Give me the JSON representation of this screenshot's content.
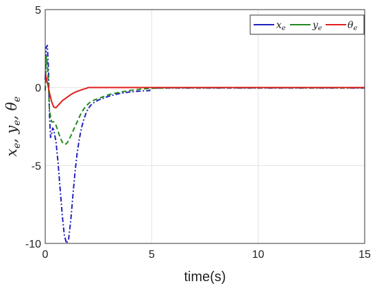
{
  "chart_data": {
    "type": "line",
    "xlabel": "time(s)",
    "ylabel": "x_e, y_e, θ_e",
    "ylabel_parts": {
      "x": "x",
      "x_sub": "e",
      "sep1": ", y",
      "y_sub": "e",
      "sep2": ", θ",
      "theta_sub": "e"
    },
    "xlim": [
      0,
      15
    ],
    "ylim": [
      -10,
      5
    ],
    "xticks": [
      "0",
      "5",
      "10",
      "15"
    ],
    "yticks": [
      "5",
      "0",
      "-5",
      "-10"
    ],
    "grid": true,
    "legend_position": "top-right",
    "series": [
      {
        "key": "xe",
        "name": "x_e",
        "label_main": "x",
        "label_sub": "e",
        "color": "#1f1fbf",
        "dash": "7 3 2 3",
        "x": [
          0,
          0.05,
          0.1,
          0.15,
          0.2,
          0.25,
          0.3,
          0.35,
          0.4,
          0.45,
          0.5,
          0.6,
          0.7,
          0.8,
          0.9,
          1.0,
          1.1,
          1.2,
          1.3,
          1.4,
          1.5,
          1.6,
          1.7,
          1.8,
          1.9,
          2.0,
          2.1,
          2.2,
          2.3,
          2.5,
          3.0,
          3.5,
          4.0,
          4.5,
          4.9,
          4.95,
          5.0,
          6,
          7,
          8,
          9,
          10,
          11,
          12,
          13,
          14,
          15
        ],
        "values": [
          0.5,
          2.6,
          2.7,
          1.2,
          -1.8,
          -3.2,
          -3.0,
          -2.6,
          -2.7,
          -3.1,
          -3.4,
          -4.8,
          -6.5,
          -8.2,
          -9.5,
          -10.0,
          -9.7,
          -8.5,
          -6.9,
          -5.4,
          -4.2,
          -3.3,
          -2.6,
          -2.1,
          -1.7,
          -1.4,
          -1.2,
          -1.05,
          -0.95,
          -0.8,
          -0.55,
          -0.38,
          -0.28,
          -0.22,
          -0.2,
          -0.05,
          -0.03,
          -0.03,
          -0.03,
          -0.03,
          -0.03,
          -0.03,
          -0.03,
          -0.03,
          -0.03,
          -0.03,
          -0.03
        ]
      },
      {
        "key": "ye",
        "name": "y_e",
        "label_main": "y",
        "label_sub": "e",
        "color": "#1f8a1f",
        "dash": "7 4",
        "x": [
          0,
          0.05,
          0.1,
          0.15,
          0.2,
          0.3,
          0.4,
          0.5,
          0.6,
          0.7,
          0.8,
          0.9,
          1.0,
          1.1,
          1.2,
          1.3,
          1.5,
          1.7,
          1.9,
          2.1,
          2.3,
          2.5,
          3.0,
          3.5,
          4.0,
          4.5,
          5.0,
          6,
          7,
          8,
          9,
          10,
          11,
          12,
          13,
          14,
          15
        ],
        "values": [
          -0.2,
          2.0,
          1.5,
          0.2,
          -1.5,
          -2.2,
          -2.2,
          -2.4,
          -2.8,
          -3.2,
          -3.5,
          -3.65,
          -3.6,
          -3.4,
          -3.1,
          -2.8,
          -2.2,
          -1.6,
          -1.2,
          -0.95,
          -0.8,
          -0.7,
          -0.45,
          -0.3,
          -0.18,
          -0.1,
          -0.05,
          -0.02,
          -0.02,
          -0.02,
          -0.02,
          -0.02,
          -0.02,
          -0.02,
          -0.02,
          -0.02,
          -0.02
        ]
      },
      {
        "key": "theta",
        "name": "θ_e",
        "label_main": "θ",
        "label_sub": "e",
        "color": "#e01c1c",
        "dash": "",
        "x": [
          0,
          0.05,
          0.1,
          0.15,
          0.2,
          0.3,
          0.4,
          0.5,
          0.6,
          0.7,
          0.8,
          1.0,
          1.2,
          1.4,
          1.6,
          1.8,
          1.95,
          2.0,
          3,
          4,
          5,
          6,
          7,
          8,
          9,
          10,
          11,
          12,
          13,
          14,
          15
        ],
        "values": [
          0.9,
          0.6,
          0.3,
          0.0,
          -0.35,
          -0.9,
          -1.25,
          -1.3,
          -1.15,
          -1.0,
          -0.85,
          -0.65,
          -0.45,
          -0.3,
          -0.2,
          -0.1,
          -0.05,
          0.0,
          0.0,
          0.0,
          0.0,
          0.0,
          0.0,
          0.0,
          0.0,
          0.0,
          0.0,
          0.0,
          0.0,
          0.0,
          0.0
        ]
      }
    ]
  }
}
